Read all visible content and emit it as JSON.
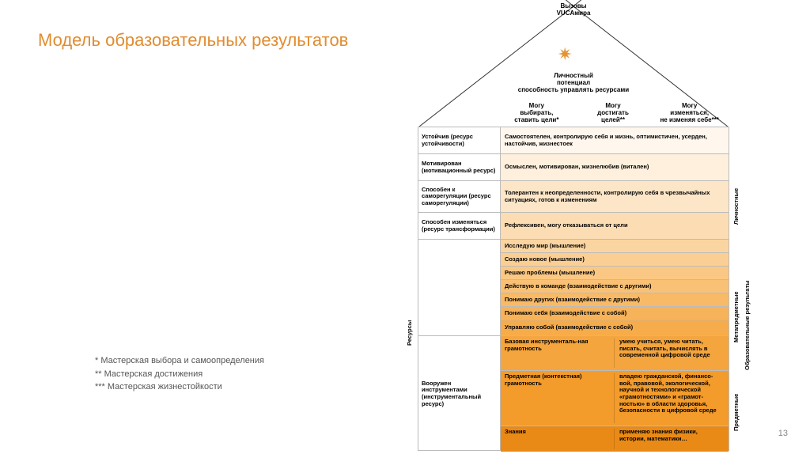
{
  "title": {
    "text": "Модель образовательных результатов",
    "color": "#e18c2f"
  },
  "footnotes": [
    "* Мастерская выбора и самоопределения",
    "** Мастерская достижения",
    "*** Мастерская жизнестойкости"
  ],
  "page_number": "13",
  "roof": {
    "top_label": "Вызовы\nVUCAмира",
    "star_color": "#e39536",
    "sub_title": "Личностный\nпотенциал\nспособность управлять ресурсами",
    "columns": [
      "Могу\nвыбирать,\nставить цели*",
      "Могу\nдостигать\nцелей**",
      "Могу\nизменяться,\nне изменяя себе***"
    ],
    "stroke": "#333333"
  },
  "left_column": [
    {
      "text": "Устойчив (ресурс устойчивости)",
      "h": 34
    },
    {
      "text": "Мотивирован (мотивационный ресурс)",
      "h": 34
    },
    {
      "text": "Способен к саморегуляции (ресурс саморегуляции)",
      "h": 40
    },
    {
      "text": "Способен изменяться (ресурс трансформации)",
      "h": 34
    },
    {
      "text": "",
      "h": 122
    },
    {
      "text": "Вооружен инструментами (инструментальный ресурс)",
      "h": 146
    }
  ],
  "right_rows": [
    {
      "bg": "#fff7ee",
      "h": 34,
      "text": "Самостоятелен, контролирую себя и жизнь, оптимистичен, усерден, настойчив, жизнестоек"
    },
    {
      "bg": "#fef0dd",
      "h": 34,
      "text": "Осмыслен, мотивирован, жизнелюбив (витален)"
    },
    {
      "bg": "#fde6c8",
      "h": 40,
      "text": "Толерантен к неопределенности, контролирую себя в чрезвычайных ситуациях, готов к изменениям"
    },
    {
      "bg": "#fcddb3",
      "h": 34,
      "text": "Рефлексивен, могу отказываться от цели"
    },
    {
      "bg": "#fbd5a1",
      "h": 17,
      "text": "Исследую мир (мышление)"
    },
    {
      "bg": "#fbcf93",
      "h": 17,
      "text": "Создаю новое (мышление)"
    },
    {
      "bg": "#fac884",
      "h": 17,
      "text": "Решаю проблемы (мышление)"
    },
    {
      "bg": "#f9c176",
      "h": 17,
      "text": "Действую в команде (взаимодействие с другими)"
    },
    {
      "bg": "#f8ba67",
      "h": 17,
      "text": "Понимаю других (взаимодействие с другими)"
    },
    {
      "bg": "#f7b359",
      "h": 17,
      "text": "Понимаю себя (взаимодействие с собой)"
    },
    {
      "bg": "#f6ac4b",
      "h": 20,
      "text": "Управляю собой (взаимодействие с собой)"
    },
    {
      "bg": "#f5a53d",
      "h": 44,
      "two": true,
      "left": "Базовая инструменталь-ная грамотность",
      "right": "умею учиться, умею читать, писать, считать, вычислять в современной цифровой среде"
    },
    {
      "bg": "#f39b2b",
      "h": 70,
      "two": true,
      "left": "Предметная (контекстная) грамотность",
      "right": "владею гражданской, финансо-вой, правовой, экологической, научной и технологической «грамотностями» и «грамот-ностью» в области здоровья, безопасности в цифровой среде"
    },
    {
      "bg": "#ea8a16",
      "h": 32,
      "two": true,
      "left": "Знания",
      "right": "применяю знания физики, истории, математики…"
    }
  ],
  "vertical_labels": {
    "resources": "Ресурсы",
    "lich": "Личностные",
    "meta": "Метапредметные",
    "pred": "Предметные",
    "outer": "Образовательные результаты"
  }
}
